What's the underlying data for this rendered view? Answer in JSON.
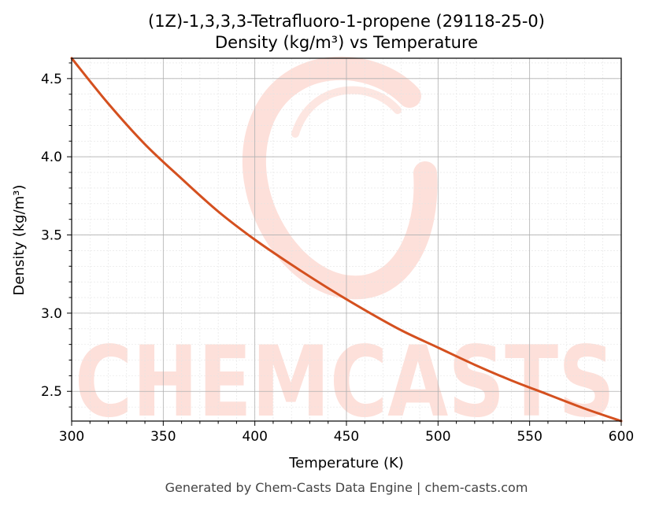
{
  "chart_data": {
    "type": "line",
    "title": "(1Z)-1,3,3,3-Tetrafluoro-1-propene (29118-25-0)",
    "subtitle": "Density (kg/m³) vs Temperature",
    "xlabel": "Temperature (K)",
    "ylabel": "Density (kg/m³)",
    "xlim": [
      300,
      600
    ],
    "ylim": [
      2.31,
      4.63
    ],
    "x_ticks": [
      300,
      350,
      400,
      450,
      500,
      550,
      600
    ],
    "y_ticks": [
      2.5,
      3.0,
      3.5,
      4.0,
      4.5
    ],
    "x_tick_labels": [
      "300",
      "350",
      "400",
      "450",
      "500",
      "550",
      "600"
    ],
    "y_tick_labels": [
      "2.5",
      "3.0",
      "3.5",
      "4.0",
      "4.5"
    ],
    "grid": true,
    "series": [
      {
        "color": "#d4501f",
        "x": [
          300,
          320,
          340,
          360,
          380,
          400,
          420,
          440,
          460,
          480,
          500,
          520,
          540,
          560,
          580,
          600
        ],
        "y": [
          4.63,
          4.34,
          4.08,
          3.86,
          3.65,
          3.47,
          3.31,
          3.16,
          3.02,
          2.89,
          2.78,
          2.67,
          2.57,
          2.48,
          2.39,
          2.31
        ]
      }
    ]
  },
  "watermark": {
    "text": "CHEMCASTS",
    "color": "#fde0da"
  },
  "footer": "Generated by Chem-Casts Data Engine | chem-casts.com"
}
